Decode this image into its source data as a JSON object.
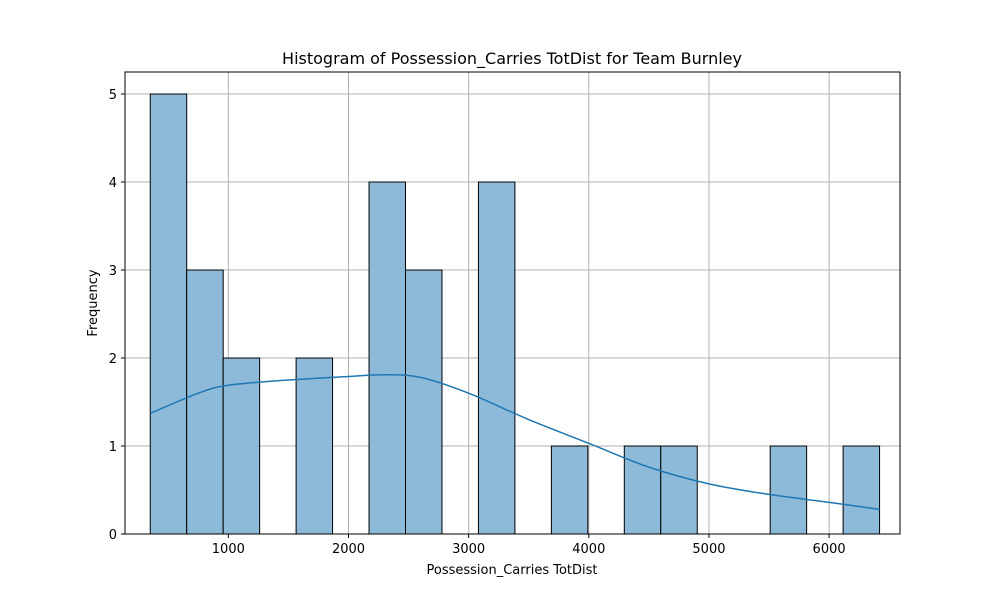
{
  "chart_data": {
    "type": "bar",
    "title": "Histogram of Possession_Carries TotDist for Team Burnley",
    "xlabel": "Possession_Carries TotDist",
    "ylabel": "Frequency",
    "xlim": [
      140,
      6590
    ],
    "ylim": [
      0,
      5.25
    ],
    "xticks": [
      1000,
      2000,
      3000,
      4000,
      5000,
      6000
    ],
    "yticks": [
      0,
      1,
      2,
      3,
      4,
      5
    ],
    "grid": true,
    "bin_edges": [
      350,
      653.5,
      957,
      1260.5,
      1564,
      1867.5,
      2171,
      2474.5,
      2778,
      3081.5,
      3385,
      3688.5,
      3992,
      4295.5,
      4599,
      4902.5,
      5206,
      5509.5,
      5813,
      6116.5,
      6420
    ],
    "counts": [
      5,
      3,
      2,
      0,
      2,
      0,
      4,
      3,
      0,
      4,
      0,
      1,
      0,
      1,
      1,
      0,
      0,
      1,
      0,
      1
    ],
    "kde": {
      "x": [
        350,
        750,
        1000,
        1500,
        2000,
        2300,
        2600,
        3000,
        3500,
        4000,
        4500,
        5000,
        5500,
        6000,
        6420
      ],
      "y": [
        1.37,
        1.6,
        1.69,
        1.75,
        1.79,
        1.81,
        1.78,
        1.6,
        1.3,
        1.03,
        0.76,
        0.57,
        0.45,
        0.36,
        0.28
      ]
    },
    "colors": {
      "bar_fill": "#8ebad9",
      "bar_edge": "#000000",
      "kde_line": "#1f77b4",
      "grid": "#b0b0b0"
    }
  }
}
